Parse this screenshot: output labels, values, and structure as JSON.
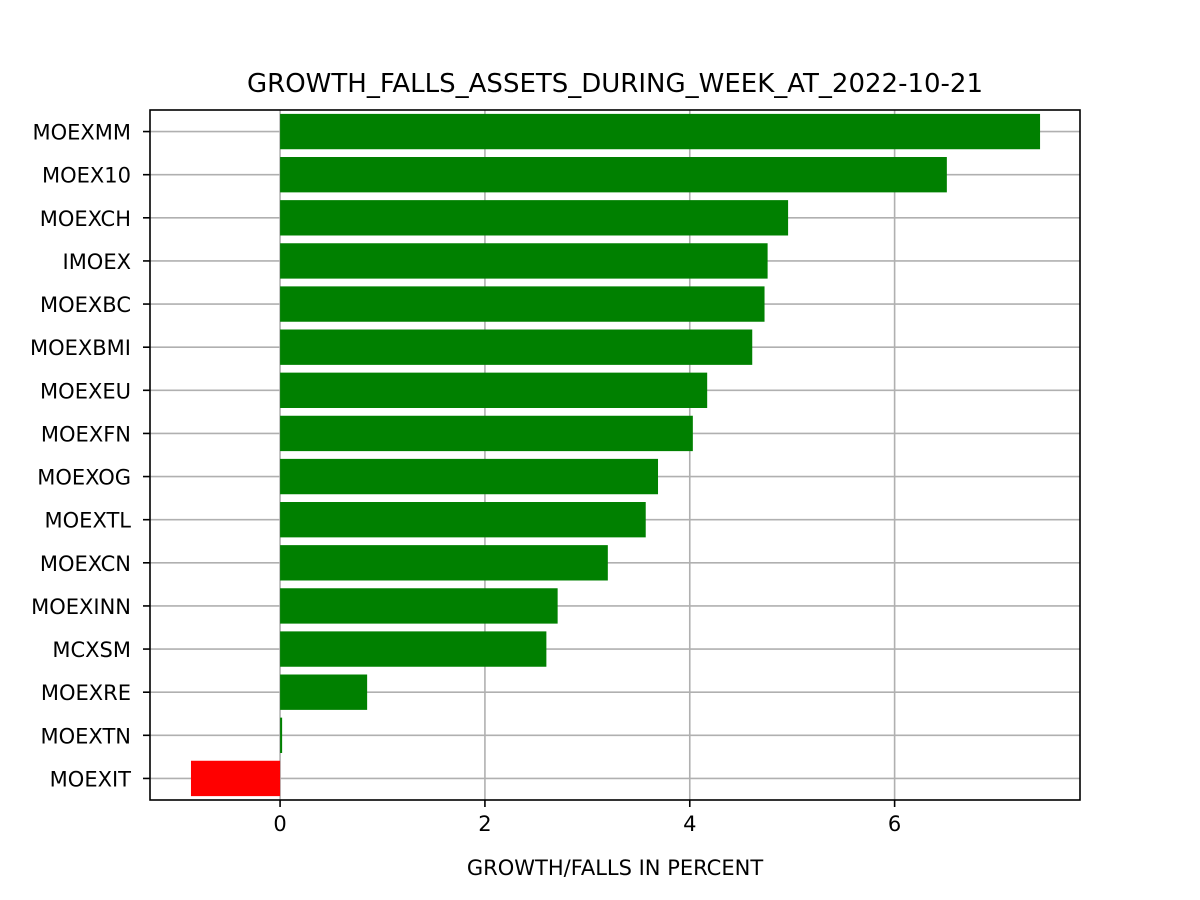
{
  "chart_data": {
    "type": "bar",
    "orientation": "horizontal",
    "title": "GROWTH_FALLS_ASSETS_DURING_WEEK_AT_2022-10-21",
    "xlabel": "GROWTH/FALLS IN PERCENT",
    "ylabel": "",
    "xlim": [
      -1.27,
      7.81
    ],
    "xticks": [
      0,
      2,
      4,
      6
    ],
    "grid": true,
    "legend": "none",
    "positive_color": "#008000",
    "negative_color": "#ff0000",
    "categories": [
      "MOEXMM",
      "MOEX10",
      "MOEXCH",
      "IMOEX",
      "MOEXBC",
      "MOEXBMI",
      "MOEXEU",
      "MOEXFN",
      "MOEXOG",
      "MOEXTL",
      "MOEXCN",
      "MOEXINN",
      "MCXSM",
      "MOEXRE",
      "MOEXTN",
      "MOEXIT"
    ],
    "values": [
      7.42,
      6.51,
      4.96,
      4.76,
      4.73,
      4.61,
      4.17,
      4.03,
      3.69,
      3.57,
      3.2,
      2.71,
      2.6,
      0.85,
      0.02,
      -0.87
    ]
  }
}
